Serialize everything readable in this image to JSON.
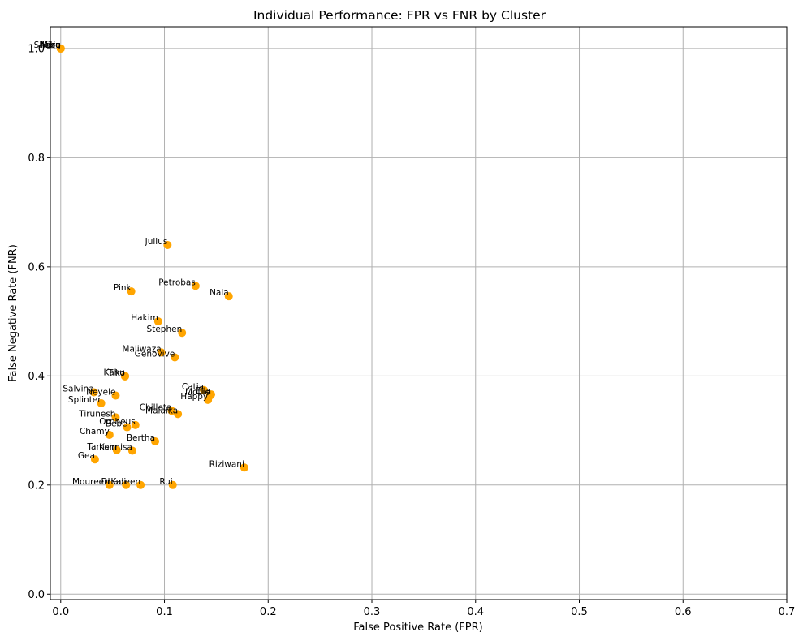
{
  "chart_data": {
    "type": "scatter",
    "title": "Individual Performance: FPR vs FNR by Cluster",
    "xlabel": "False Positive Rate (FPR)",
    "ylabel": "False Negative Rate (FNR)",
    "xlim": [
      -0.01,
      0.7
    ],
    "ylim": [
      -0.01,
      1.04
    ],
    "x_ticks": [
      0.0,
      0.1,
      0.2,
      0.3,
      0.4,
      0.5,
      0.6,
      0.7
    ],
    "x_tick_labels": [
      "0.0",
      "0.1",
      "0.2",
      "0.3",
      "0.4",
      "0.5",
      "0.6",
      "0.7"
    ],
    "y_ticks": [
      0.0,
      0.2,
      0.4,
      0.6,
      0.8,
      1.0
    ],
    "y_tick_labels": [
      "0.0",
      "0.2",
      "0.4",
      "0.6",
      "0.8",
      "1.0"
    ],
    "grid": true,
    "marker_color": "#FFA500",
    "points": [
      {
        "name": "Moja",
        "x": 0.0,
        "y": 1.0
      },
      {
        "name": "Nuru",
        "x": 0.0,
        "y": 1.0
      },
      {
        "name": "Kibo",
        "x": 0.0,
        "y": 1.0
      },
      {
        "name": "Sheng",
        "x": 0.0,
        "y": 1.0
      },
      {
        "name": "Julius",
        "x": 0.103,
        "y": 0.64
      },
      {
        "name": "Petrobas",
        "x": 0.13,
        "y": 0.565
      },
      {
        "name": "Nala",
        "x": 0.162,
        "y": 0.546
      },
      {
        "name": "Pink",
        "x": 0.068,
        "y": 0.555
      },
      {
        "name": "Hakim",
        "x": 0.094,
        "y": 0.5
      },
      {
        "name": "Stephen",
        "x": 0.117,
        "y": 0.479
      },
      {
        "name": "Maliwaza",
        "x": 0.097,
        "y": 0.443
      },
      {
        "name": "Genovive",
        "x": 0.11,
        "y": 0.434
      },
      {
        "name": "Kahu",
        "x": 0.062,
        "y": 0.4
      },
      {
        "name": "Tiko",
        "x": 0.062,
        "y": 0.399
      },
      {
        "name": "Catia",
        "x": 0.138,
        "y": 0.374
      },
      {
        "name": "Mollie",
        "x": 0.144,
        "y": 0.364
      },
      {
        "name": "Ella",
        "x": 0.145,
        "y": 0.366
      },
      {
        "name": "Happy",
        "x": 0.142,
        "y": 0.356
      },
      {
        "name": "Salvina",
        "x": 0.032,
        "y": 0.37
      },
      {
        "name": "Neyele",
        "x": 0.053,
        "y": 0.364
      },
      {
        "name": "Splinter",
        "x": 0.039,
        "y": 0.35
      },
      {
        "name": "Chilleta",
        "x": 0.107,
        "y": 0.336
      },
      {
        "name": "Malaika",
        "x": 0.113,
        "y": 0.33
      },
      {
        "name": "Tirunesh",
        "x": 0.053,
        "y": 0.324
      },
      {
        "name": "Orpheus",
        "x": 0.072,
        "y": 0.31
      },
      {
        "name": "Bebe",
        "x": 0.064,
        "y": 0.306
      },
      {
        "name": "Chamy",
        "x": 0.047,
        "y": 0.292
      },
      {
        "name": "Bertha",
        "x": 0.091,
        "y": 0.28
      },
      {
        "name": "Tamsin",
        "x": 0.054,
        "y": 0.264
      },
      {
        "name": "Kennisa",
        "x": 0.069,
        "y": 0.263
      },
      {
        "name": "Gea",
        "x": 0.033,
        "y": 0.247
      },
      {
        "name": "Riziwani",
        "x": 0.177,
        "y": 0.232
      },
      {
        "name": "Moureen",
        "x": 0.047,
        "y": 0.2
      },
      {
        "name": "Dhadi",
        "x": 0.063,
        "y": 0.2
      },
      {
        "name": "Kareen",
        "x": 0.077,
        "y": 0.2
      },
      {
        "name": "Rui",
        "x": 0.108,
        "y": 0.2
      }
    ]
  }
}
